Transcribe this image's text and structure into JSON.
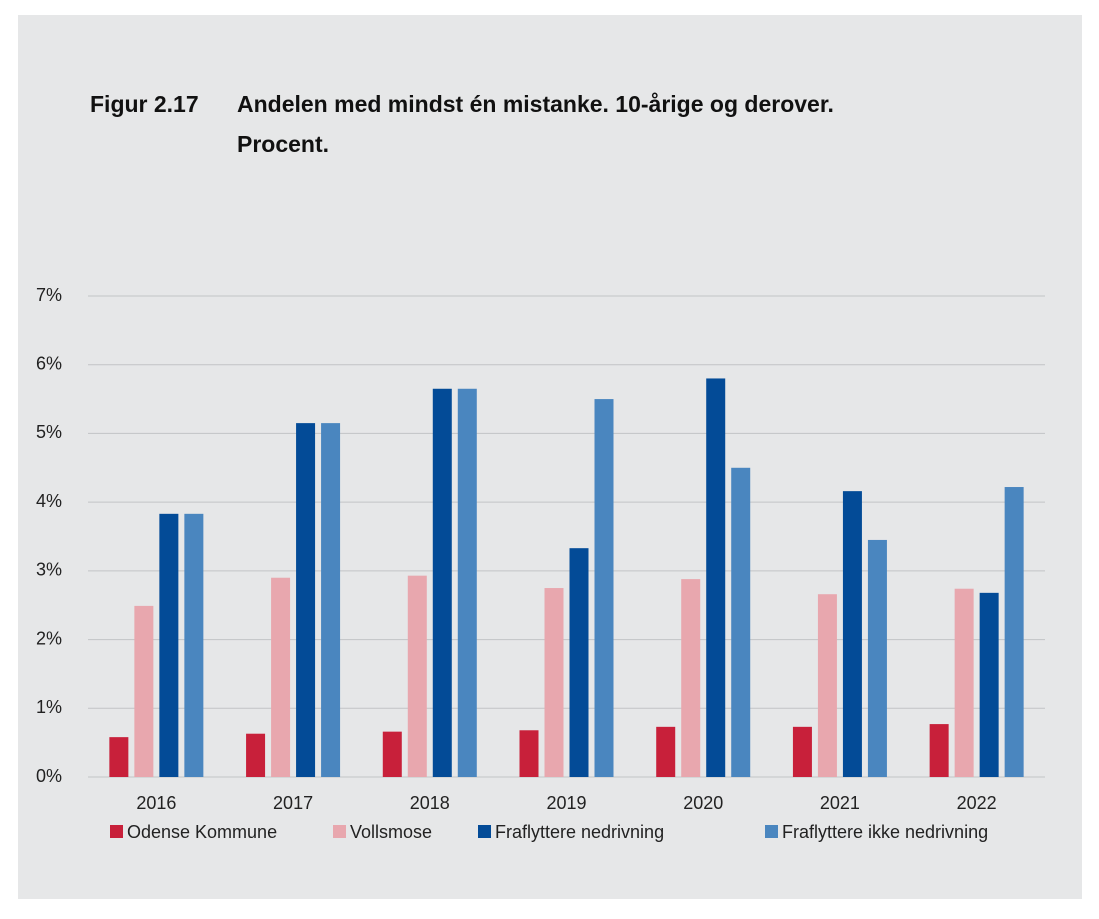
{
  "chart_data": {
    "type": "bar",
    "figure_label": "Figur 2.17",
    "title": "Andelen med mindst én mistanke. 10-årige og derover. Procent.",
    "categories": [
      "2016",
      "2017",
      "2018",
      "2019",
      "2020",
      "2021",
      "2022"
    ],
    "series": [
      {
        "name": "Odense Kommune",
        "color": "#c8203a",
        "values": [
          0.58,
          0.63,
          0.66,
          0.68,
          0.73,
          0.73,
          0.77
        ]
      },
      {
        "name": "Vollsmose",
        "color": "#e8a7ae",
        "values": [
          2.49,
          2.9,
          2.93,
          2.75,
          2.88,
          2.66,
          2.74
        ]
      },
      {
        "name": "Fraflyttere nedrivning",
        "color": "#034b97",
        "values": [
          3.83,
          5.15,
          5.65,
          3.33,
          5.8,
          4.16,
          2.68
        ]
      },
      {
        "name": "Fraflyttere ikke nedrivning",
        "color": "#4a86bf",
        "values": [
          3.83,
          5.15,
          5.65,
          5.5,
          4.5,
          3.45,
          4.22
        ]
      }
    ],
    "ylim": [
      0,
      7
    ],
    "yticks": [
      {
        "value": 0,
        "label": "0%"
      },
      {
        "value": 1,
        "label": "1%"
      },
      {
        "value": 2,
        "label": "2%"
      },
      {
        "value": 3,
        "label": "3%"
      },
      {
        "value": 4,
        "label": "4%"
      },
      {
        "value": 5,
        "label": "5%"
      },
      {
        "value": 6,
        "label": "6%"
      },
      {
        "value": 7,
        "label": "7%"
      }
    ],
    "grid": true,
    "legend": "bottom"
  }
}
